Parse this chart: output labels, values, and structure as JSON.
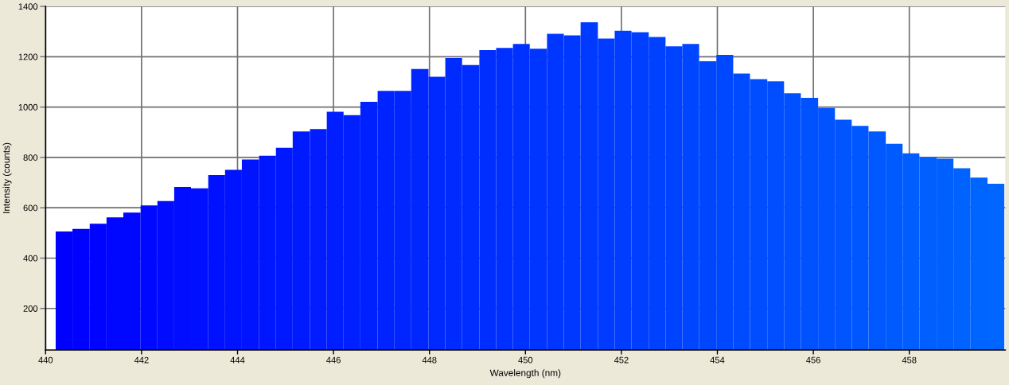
{
  "chart_data": {
    "type": "histogram",
    "xlabel": "Wavelength (nm)",
    "ylabel": "Intensity (counts)",
    "bins": [
      440.21,
      440.56,
      440.92,
      441.27,
      441.62,
      441.98,
      442.33,
      442.68,
      443.03,
      443.39,
      443.74,
      444.09,
      444.45,
      444.8,
      445.15,
      445.51,
      445.86,
      446.21,
      446.56,
      446.92,
      447.27,
      447.62,
      447.98,
      448.33,
      448.68,
      449.04,
      449.39,
      449.74,
      450.09,
      450.45,
      450.8,
      451.15,
      451.51,
      451.86,
      452.21,
      452.57,
      452.92,
      453.27,
      453.62,
      453.98,
      454.33,
      454.68,
      455.04,
      455.39,
      455.74,
      456.1,
      456.45,
      456.8,
      457.15,
      457.51,
      457.86,
      458.21,
      458.57,
      458.92,
      459.27,
      459.63,
      459.98
    ],
    "values": [
      506,
      516,
      537,
      562,
      581,
      609,
      627,
      683,
      677,
      730,
      751,
      792,
      807,
      838,
      903,
      913,
      981,
      968,
      1021,
      1064,
      1064,
      1151,
      1120,
      1195,
      1167,
      1226,
      1235,
      1251,
      1232,
      1291,
      1285,
      1337,
      1272,
      1303,
      1297,
      1278,
      1241,
      1251,
      1182,
      1207,
      1133,
      1111,
      1102,
      1055,
      1037,
      996,
      950,
      925,
      903,
      854,
      816,
      801,
      795,
      757,
      720,
      695
    ],
    "colors": [
      "#0000ff",
      "#0002ff",
      "#0004ff",
      "#0006ff",
      "#0007ff",
      "#0009ff",
      "#000bff",
      "#000dff",
      "#000fff",
      "#0011ff",
      "#0013ff",
      "#0014ff",
      "#0016ff",
      "#0018ff",
      "#001aff",
      "#001cff",
      "#001eff",
      "#0020ff",
      "#0021ff",
      "#0023ff",
      "#0025ff",
      "#0027ff",
      "#0029ff",
      "#002bff",
      "#002dff",
      "#002eff",
      "#0030ff",
      "#0032ff",
      "#0034ff",
      "#0036ff",
      "#0038ff",
      "#0039ff",
      "#003bff",
      "#003dff",
      "#003fff",
      "#0041ff",
      "#0043ff",
      "#0045ff",
      "#0046ff",
      "#0048ff",
      "#004aff",
      "#004cff",
      "#004eff",
      "#0050ff",
      "#0052ff",
      "#0053ff",
      "#0055ff",
      "#0057ff",
      "#0059ff",
      "#005bff",
      "#005dff",
      "#005fff",
      "#0060ff",
      "#0062ff",
      "#0064ff",
      "#0066ff"
    ],
    "xlim": [
      440,
      460
    ],
    "xticks": [
      440,
      442,
      444,
      446,
      448,
      450,
      452,
      454,
      456,
      458
    ],
    "ylim": [
      35,
      1400
    ],
    "yticks": [
      200,
      400,
      600,
      800,
      1000,
      1200,
      1400
    ],
    "grid": true
  }
}
